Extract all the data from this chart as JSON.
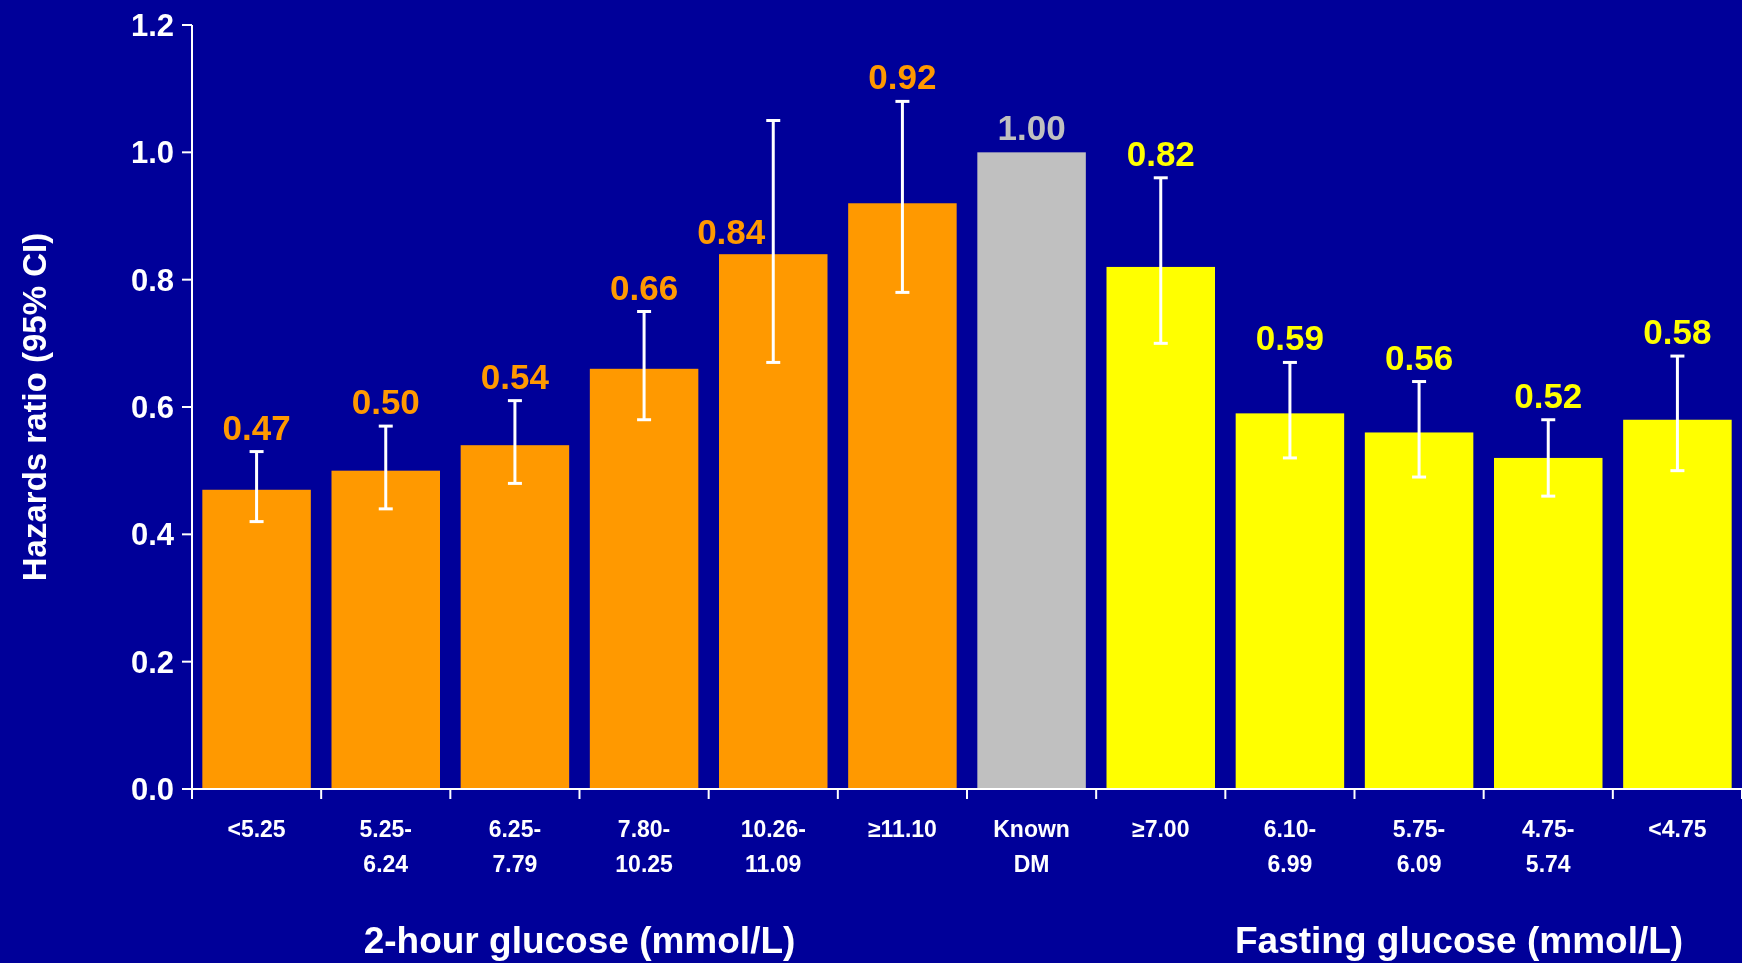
{
  "chart_data": {
    "type": "bar",
    "ylabel": "Hazards ratio (95% CI)",
    "categories": [
      "<5.25",
      "5.25-6.24",
      "6.25-7.79",
      "7.80-10.25",
      "10.26-11.09",
      "≥11.10",
      "Known DM",
      "≥7.00",
      "6.10-6.99",
      "5.75-6.09",
      "4.75-5.74",
      "<4.75"
    ],
    "values": [
      0.47,
      0.5,
      0.54,
      0.66,
      0.84,
      0.92,
      1.0,
      0.82,
      0.59,
      0.56,
      0.52,
      0.58
    ],
    "colors": [
      "#ff9900",
      "#ff9900",
      "#ff9900",
      "#ff9900",
      "#ff9900",
      "#ff9900",
      "#c0c0c0",
      "#ffff00",
      "#ffff00",
      "#ffff00",
      "#ffff00",
      "#ffff00"
    ],
    "errors": [
      [
        0.42,
        0.53
      ],
      [
        0.44,
        0.57
      ],
      [
        0.48,
        0.61
      ],
      [
        0.58,
        0.75
      ],
      [
        0.67,
        1.05
      ],
      [
        0.78,
        1.08
      ],
      null,
      [
        0.7,
        0.96
      ],
      [
        0.52,
        0.67
      ],
      [
        0.49,
        0.64
      ],
      [
        0.46,
        0.58
      ],
      [
        0.5,
        0.68
      ]
    ],
    "value_labels": [
      "0.47",
      "0.50",
      "0.54",
      "0.66",
      "0.84",
      "0.92",
      "1.00",
      "0.82",
      "0.59",
      "0.56",
      "0.52",
      "0.58"
    ],
    "ylim": [
      0,
      1.2
    ],
    "yticks": [
      {
        "value": 0,
        "label": "0.0"
      },
      {
        "value": 0.2,
        "label": "0.2"
      },
      {
        "value": 0.4,
        "label": "0.4"
      },
      {
        "value": 0.6,
        "label": "0.6"
      },
      {
        "value": 0.8,
        "label": "0.8"
      },
      {
        "value": 1,
        "label": "1.0"
      },
      {
        "value": 1.2,
        "label": "1.2"
      }
    ],
    "annotations": [
      "2-hour glucose (mmol/L)",
      "Fasting glucose (mmol/L)"
    ],
    "grid": false
  }
}
